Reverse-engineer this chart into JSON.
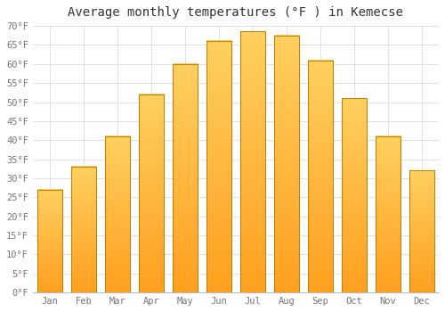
{
  "title": "Average monthly temperatures (°F ) in Kemecse",
  "months": [
    "Jan",
    "Feb",
    "Mar",
    "Apr",
    "May",
    "Jun",
    "Jul",
    "Aug",
    "Sep",
    "Oct",
    "Nov",
    "Dec"
  ],
  "values": [
    27,
    33,
    41,
    52,
    60,
    66,
    68.5,
    67.5,
    61,
    51,
    41,
    32
  ],
  "bar_color_bottom": "#FFA020",
  "bar_color_top": "#FFD060",
  "bar_edge_color": "#B8860B",
  "ylim": [
    0,
    70
  ],
  "yticks": [
    0,
    5,
    10,
    15,
    20,
    25,
    30,
    35,
    40,
    45,
    50,
    55,
    60,
    65,
    70
  ],
  "ytick_labels": [
    "0°F",
    "5°F",
    "10°F",
    "15°F",
    "20°F",
    "25°F",
    "30°F",
    "35°F",
    "40°F",
    "45°F",
    "50°F",
    "55°F",
    "60°F",
    "65°F",
    "70°F"
  ],
  "grid_color": "#dddddd",
  "background_color": "#ffffff",
  "title_fontsize": 10,
  "tick_fontsize": 7.5,
  "bar_width": 0.75
}
